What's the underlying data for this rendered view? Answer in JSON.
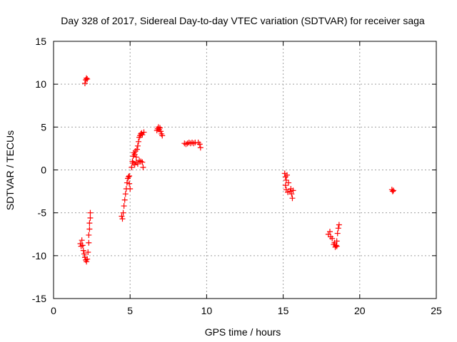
{
  "chart_data": {
    "type": "scatter",
    "title": "Day 328 of 2017, Sidereal Day-to-day VTEC variation (SDTVAR) for receiver saga",
    "xlabel": "GPS time / hours",
    "ylabel": "SDTVAR / TECUs",
    "xlim": [
      0,
      25
    ],
    "ylim": [
      -15,
      15
    ],
    "xticks": [
      0,
      5,
      10,
      15,
      20,
      25
    ],
    "yticks": [
      -15,
      -10,
      -5,
      0,
      5,
      10,
      15
    ],
    "grid": true,
    "marker": "+",
    "color": "#ff0000",
    "series": [
      {
        "name": "SDTVAR",
        "points": [
          [
            1.75,
            -8.6
          ],
          [
            1.8,
            -8.9
          ],
          [
            1.85,
            -8.2
          ],
          [
            1.9,
            -8.8
          ],
          [
            1.95,
            -9.4
          ],
          [
            2.0,
            -9.8
          ],
          [
            2.05,
            -10.2
          ],
          [
            2.1,
            -10.5
          ],
          [
            2.15,
            -10.7
          ],
          [
            2.2,
            -10.4
          ],
          [
            2.25,
            -9.6
          ],
          [
            2.3,
            -8.5
          ],
          [
            2.3,
            -7.6
          ],
          [
            2.35,
            -6.9
          ],
          [
            2.35,
            -6.2
          ],
          [
            2.4,
            -5.6
          ],
          [
            2.4,
            -5.0
          ],
          [
            2.05,
            10.1
          ],
          [
            2.1,
            10.5
          ],
          [
            2.15,
            10.7
          ],
          [
            2.2,
            10.6
          ],
          [
            4.45,
            -5.4
          ],
          [
            4.5,
            -5.7
          ],
          [
            4.55,
            -5.0
          ],
          [
            4.6,
            -4.2
          ],
          [
            4.65,
            -3.5
          ],
          [
            4.7,
            -2.8
          ],
          [
            4.75,
            -2.2
          ],
          [
            4.8,
            -1.5
          ],
          [
            4.85,
            -1.0
          ],
          [
            4.9,
            -0.8
          ],
          [
            4.95,
            -1.6
          ],
          [
            5.0,
            -2.2
          ],
          [
            4.95,
            -0.7
          ],
          [
            5.1,
            0.3
          ],
          [
            5.15,
            1.0
          ],
          [
            5.2,
            1.6
          ],
          [
            5.25,
            2.0
          ],
          [
            5.3,
            1.8
          ],
          [
            5.35,
            2.2
          ],
          [
            5.4,
            1.5
          ],
          [
            5.45,
            2.4
          ],
          [
            5.5,
            2.8
          ],
          [
            5.55,
            3.3
          ],
          [
            5.6,
            3.8
          ],
          [
            5.65,
            4.0
          ],
          [
            5.7,
            4.2
          ],
          [
            5.75,
            4.3
          ],
          [
            5.8,
            4.1
          ],
          [
            5.9,
            4.4
          ],
          [
            5.2,
            0.8
          ],
          [
            5.3,
            0.6
          ],
          [
            5.4,
            0.9
          ],
          [
            5.5,
            0.7
          ],
          [
            5.6,
            1.1
          ],
          [
            5.7,
            1.0
          ],
          [
            5.8,
            0.9
          ],
          [
            5.85,
            0.3
          ],
          [
            6.75,
            4.6
          ],
          [
            6.8,
            4.8
          ],
          [
            6.85,
            5.0
          ],
          [
            6.9,
            4.7
          ],
          [
            6.95,
            4.9
          ],
          [
            7.0,
            4.5
          ],
          [
            7.05,
            4.2
          ],
          [
            7.1,
            4.0
          ],
          [
            8.55,
            3.1
          ],
          [
            8.65,
            3.0
          ],
          [
            8.75,
            3.1
          ],
          [
            8.85,
            3.2
          ],
          [
            8.95,
            3.1
          ],
          [
            9.05,
            3.2
          ],
          [
            9.15,
            3.1
          ],
          [
            9.25,
            3.2
          ],
          [
            9.45,
            3.2
          ],
          [
            9.55,
            3.0
          ],
          [
            9.6,
            2.6
          ],
          [
            15.1,
            -0.4
          ],
          [
            15.15,
            -0.8
          ],
          [
            15.2,
            -1.2
          ],
          [
            15.25,
            -0.6
          ],
          [
            15.15,
            -1.8
          ],
          [
            15.2,
            -2.3
          ],
          [
            15.3,
            -2.6
          ],
          [
            15.35,
            -1.5
          ],
          [
            15.45,
            -2.5
          ],
          [
            15.5,
            -2.2
          ],
          [
            15.55,
            -2.8
          ],
          [
            15.6,
            -3.3
          ],
          [
            15.65,
            -2.4
          ],
          [
            17.95,
            -7.5
          ],
          [
            18.05,
            -7.2
          ],
          [
            18.1,
            -7.8
          ],
          [
            18.2,
            -8.0
          ],
          [
            18.3,
            -8.7
          ],
          [
            18.35,
            -8.5
          ],
          [
            18.4,
            -9.0
          ],
          [
            18.45,
            -8.8
          ],
          [
            18.5,
            -8.9
          ],
          [
            18.55,
            -7.4
          ],
          [
            18.6,
            -6.8
          ],
          [
            18.65,
            -6.4
          ],
          [
            18.5,
            -8.3
          ],
          [
            22.1,
            -2.3
          ],
          [
            22.15,
            -2.5
          ],
          [
            22.2,
            -2.4
          ]
        ]
      }
    ]
  }
}
